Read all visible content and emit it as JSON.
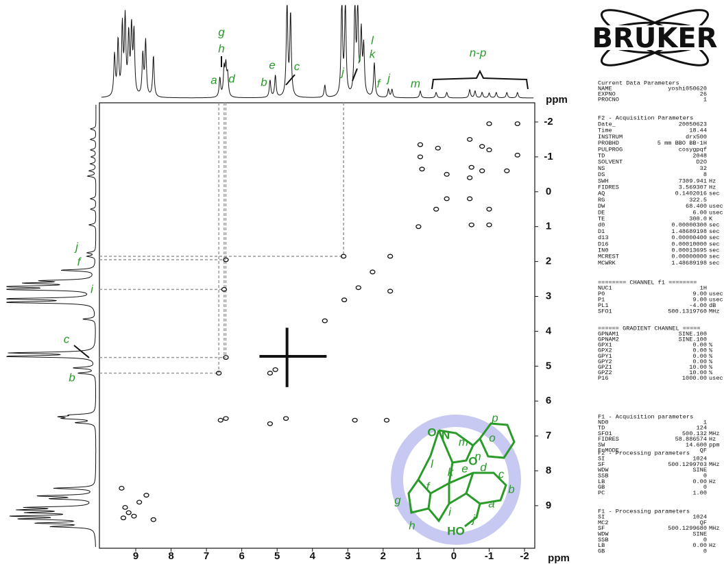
{
  "logo": {
    "text": "BRUKER"
  },
  "spectrum": {
    "x_axis": {
      "ticks": [
        9,
        8,
        7,
        6,
        5,
        4,
        3,
        2,
        1,
        0,
        -1,
        -2
      ],
      "unit": "ppm"
    },
    "y_axis": {
      "ticks": [
        -2,
        -1,
        0,
        1,
        2,
        3,
        4,
        5,
        6,
        7,
        8,
        9
      ],
      "unit": "ppm"
    },
    "top_labels": [
      "g",
      "h",
      "a",
      "d",
      "e",
      "c",
      "b",
      "j",
      "i",
      "l",
      "k",
      "f",
      "j",
      "m",
      "n-p"
    ],
    "left_labels": [
      "j",
      "f",
      "i",
      "c",
      "b"
    ]
  },
  "molecule": {
    "atoms": [
      "N",
      "O",
      "O",
      "HO"
    ],
    "labels": [
      "p",
      "m",
      "o",
      "n",
      "l",
      "k",
      "e",
      "d",
      "c",
      "f",
      "b",
      "g",
      "a",
      "i",
      "h",
      "j"
    ]
  },
  "parameters": {
    "sections": [
      {
        "title": "Current Data Parameters",
        "rows": [
          [
            "NAME",
            "yoshi050620"
          ],
          [
            "EXPNO",
            "26"
          ],
          [
            "PROCNO",
            "1"
          ]
        ]
      },
      {
        "title": "F2 - Acquisition Parameters",
        "rows": [
          [
            "Date_",
            "20050623"
          ],
          [
            "Time",
            "18.44"
          ],
          [
            "INSTRUM",
            "drx500"
          ],
          [
            "PROBHD",
            "5 mm BBO BB-1H"
          ],
          [
            "PULPROG",
            "cosygpqf"
          ],
          [
            "TD",
            "2048"
          ],
          [
            "SOLVENT",
            "D2O"
          ],
          [
            "NS",
            "32"
          ],
          [
            "DS",
            "8"
          ],
          [
            "SWH",
            "7309.941",
            "Hz"
          ],
          [
            "FIDRES",
            "3.569307",
            "Hz"
          ],
          [
            "AQ",
            "0.1402016",
            "sec"
          ],
          [
            "RG",
            "322.5"
          ],
          [
            "DW",
            "68.400",
            "usec"
          ],
          [
            "DE",
            "6.00",
            "usec"
          ],
          [
            "TE",
            "300.0",
            "K"
          ],
          [
            "d0",
            "0.00000300",
            "sec"
          ],
          [
            "D1",
            "1.48689198",
            "sec"
          ],
          [
            "d13",
            "0.00000400",
            "sec"
          ],
          [
            "D16",
            "0.00010000",
            "sec"
          ],
          [
            "IN0",
            "0.00013695",
            "sec"
          ],
          [
            "MCREST",
            "0.00000000",
            "sec"
          ],
          [
            "MCWRK",
            "1.48689198",
            "sec"
          ]
        ]
      },
      {
        "title": "======== CHANNEL f1 ========",
        "rows": [
          [
            "NUC1",
            "1H"
          ],
          [
            "P0",
            "9.00",
            "usec"
          ],
          [
            "P1",
            "9.00",
            "usec"
          ],
          [
            "PL1",
            "-4.00",
            "dB"
          ],
          [
            "SFO1",
            "500.1319760",
            "MHz"
          ]
        ]
      },
      {
        "title": "====== GRADIENT CHANNEL =====",
        "rows": [
          [
            "GPNAM1",
            "SINE.100"
          ],
          [
            "GPNAM2",
            "SINE.100"
          ],
          [
            "GPX1",
            "0.00",
            "%"
          ],
          [
            "GPX2",
            "0.00",
            "%"
          ],
          [
            "GPY1",
            "0.00",
            "%"
          ],
          [
            "GPY2",
            "0.00",
            "%"
          ],
          [
            "GPZ1",
            "10.00",
            "%"
          ],
          [
            "GPZ2",
            "10.00",
            "%"
          ],
          [
            "P16",
            "1000.00",
            "usec"
          ]
        ]
      },
      {
        "title": "F1 - Acquisition parameters",
        "rows": [
          [
            "ND0",
            "1"
          ],
          [
            "TD",
            "124"
          ],
          [
            "SFO1",
            "500.132",
            "MHz"
          ],
          [
            "FIDRES",
            "58.886574",
            "Hz"
          ],
          [
            "SW",
            "14.600",
            "ppm"
          ],
          [
            "FnMODE",
            "QF"
          ]
        ]
      },
      {
        "title": "F2 - Processing parameters",
        "rows": [
          [
            "SI",
            "1024"
          ],
          [
            "SF",
            "500.1299703",
            "MHz"
          ],
          [
            "WDW",
            "SINE"
          ],
          [
            "SSB",
            "0"
          ],
          [
            "LB",
            "0.00",
            "Hz"
          ],
          [
            "GB",
            "0"
          ],
          [
            "PC",
            "1.00"
          ]
        ]
      },
      {
        "title": "F1 - Processing parameters",
        "rows": [
          [
            "SI",
            "1024"
          ],
          [
            "MC2",
            "QF"
          ],
          [
            "SF",
            "500.1299680",
            "MHz"
          ],
          [
            "WDW",
            "SINE"
          ],
          [
            "SSB",
            "0"
          ],
          [
            "LB",
            "0.00",
            "Hz"
          ],
          [
            "GB",
            "0"
          ]
        ]
      }
    ]
  }
}
